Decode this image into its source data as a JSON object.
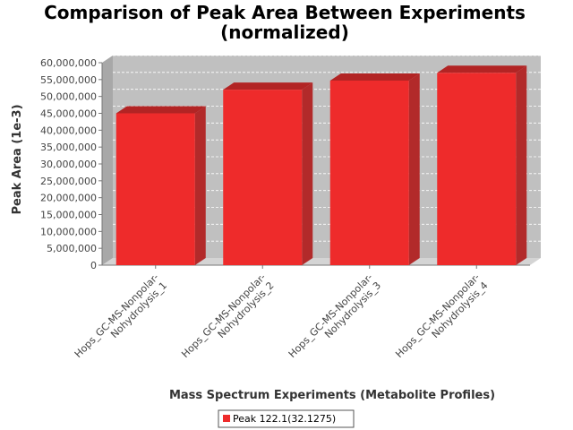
{
  "chart_data": {
    "type": "bar",
    "title": "Comparison of Peak Area Between Experiments",
    "title_line2": "(normalized)",
    "xlabel": "Mass Spectrum Experiments (Metabolite Profiles)",
    "ylabel": "Peak Area (1e-3)",
    "categories": [
      [
        "Hops_GC-MS-Nonpolar-",
        "Nohydrolysis_1"
      ],
      [
        "Hops_GC-MS-Nonpolar-",
        "Nohydrolysis_2"
      ],
      [
        "Hops_GC-MS-Nonpolar-",
        "Nohydrolysis_3"
      ],
      [
        "Hops_GC-MS-Nonpolar-",
        "Nohydrolysis_4"
      ]
    ],
    "series": [
      {
        "name": "Peak 122.1(32.1275)",
        "values": [
          45000000,
          52000000,
          54700000,
          57000000
        ]
      }
    ],
    "ylim": [
      0,
      60000000
    ],
    "yticks": [
      0,
      5000000,
      10000000,
      15000000,
      20000000,
      25000000,
      30000000,
      35000000,
      40000000,
      45000000,
      50000000,
      55000000,
      60000000
    ],
    "ytick_labels": [
      "0",
      "5,000,000",
      "10,000,000",
      "15,000,000",
      "20,000,000",
      "25,000,000",
      "30,000,000",
      "35,000,000",
      "40,000,000",
      "45,000,000",
      "50,000,000",
      "55,000,000",
      "60,000,000"
    ],
    "grid": true,
    "legend": "bottom",
    "colors": {
      "bar": "#ee2b2b",
      "bar_top": "#b22424",
      "bar_side": "#b22a2a",
      "plot_bg": "#c0c0c0",
      "plot_wall": "#a8a8a8"
    }
  }
}
